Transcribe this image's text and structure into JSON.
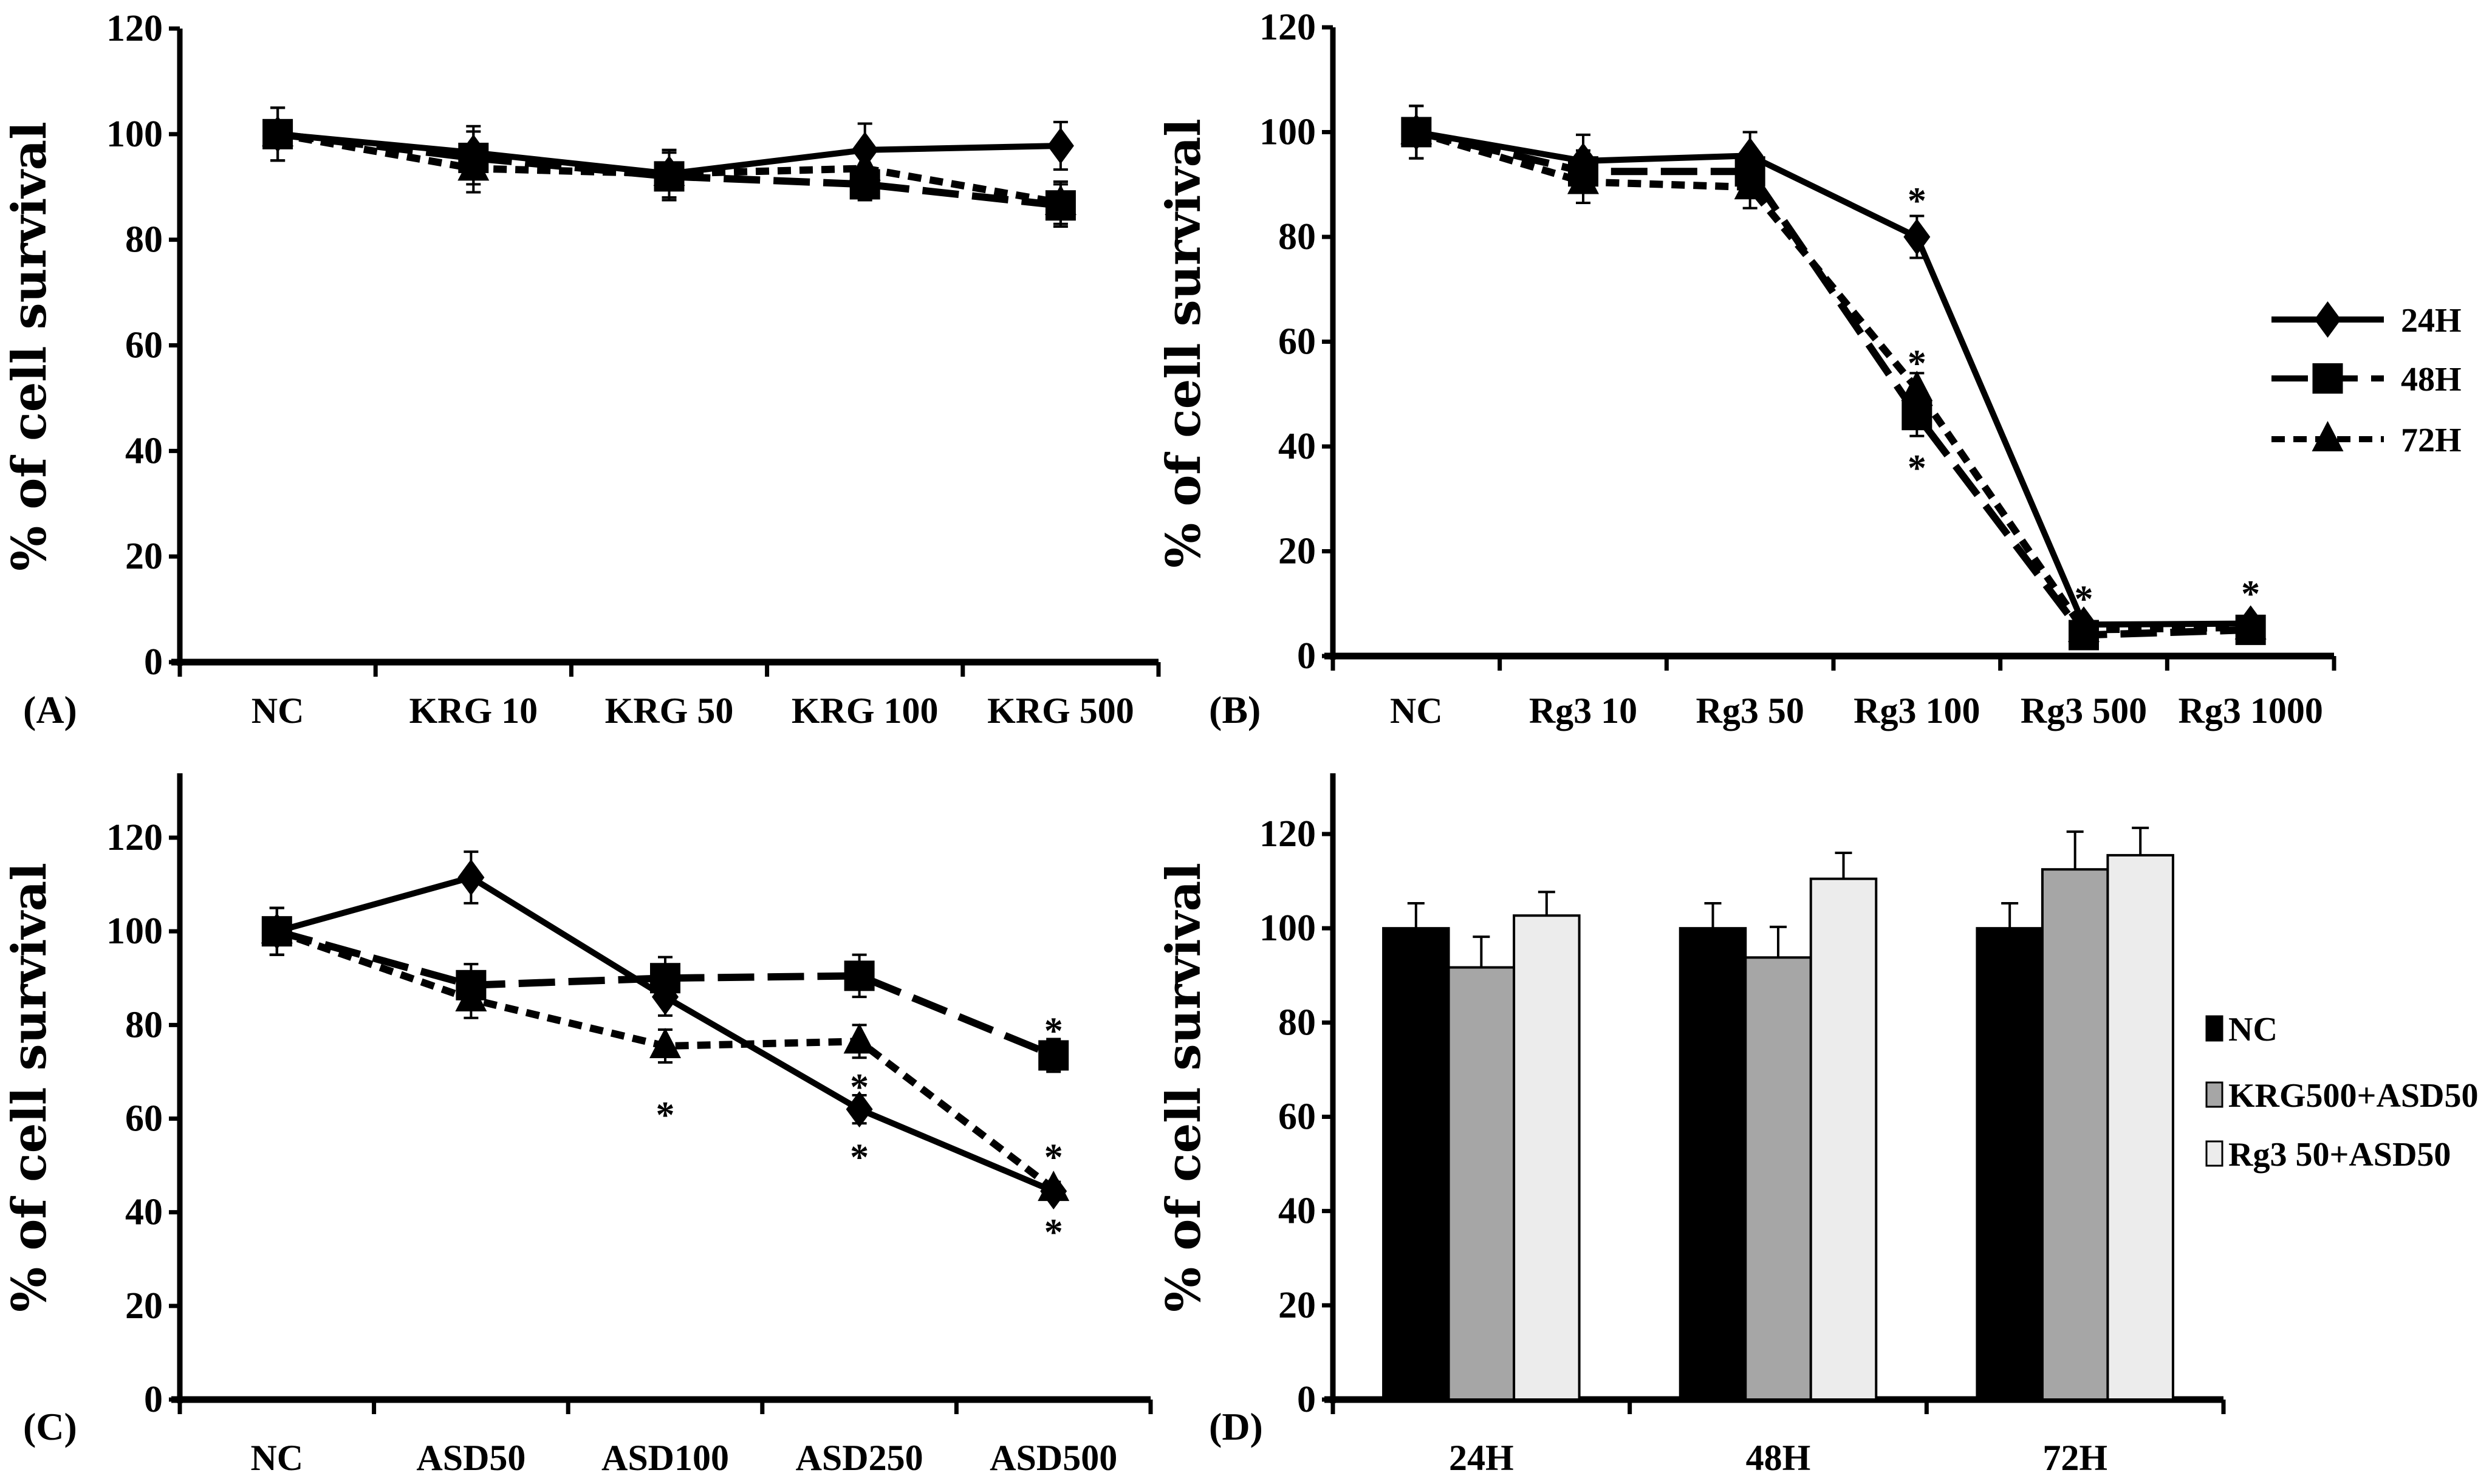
{
  "colors": {
    "ink": "#000000",
    "nc_bar": "#000000",
    "krg_bar": "#a6a6a6",
    "rg3_bar": "#ececec"
  },
  "chart_data": [
    {
      "panel_label": "(A)",
      "type": "line",
      "ylabel": "% of cell survival",
      "ylim": [
        0,
        120
      ],
      "yticks": [
        "0",
        "20",
        "40",
        "60",
        "80",
        "100",
        "120"
      ],
      "categories": [
        "NC",
        "KRG 10",
        "KRG 50",
        "KRG 100",
        "KRG 500"
      ],
      "series": [
        {
          "name": "24H",
          "marker": "diamond",
          "dash": "solid",
          "values": [
            100,
            96.5,
            92.5,
            97,
            97.8
          ],
          "errors": [
            5,
            5,
            4.5,
            5,
            4.5
          ]
        },
        {
          "name": "48H",
          "marker": "square",
          "dash": "long",
          "values": [
            100,
            95.5,
            92,
            90.5,
            86.5
          ],
          "errors": [
            5,
            5,
            4.5,
            3,
            4
          ]
        },
        {
          "name": "72H",
          "marker": "triangle",
          "dash": "short",
          "values": [
            100,
            93.5,
            92.5,
            93.5,
            87
          ],
          "errors": [
            5,
            4.5,
            4.5,
            3,
            4
          ]
        }
      ],
      "asterisks": []
    },
    {
      "panel_label": "(B)",
      "type": "line",
      "ylabel": "% of cell survival",
      "ylim": [
        0,
        120
      ],
      "yticks": [
        "0",
        "20",
        "40",
        "60",
        "80",
        "100",
        "120"
      ],
      "categories": [
        "NC",
        "Rg3 10",
        "Rg3 50",
        "Rg3 100",
        "Rg3 500",
        "Rg3 1000"
      ],
      "legend": {
        "position": "right",
        "entries": [
          "24H",
          "48H",
          "72H"
        ]
      },
      "series": [
        {
          "name": "24H",
          "marker": "diamond",
          "dash": "solid",
          "values": [
            100,
            94.5,
            95.5,
            80,
            6,
            6.2
          ],
          "errors": [
            5,
            5,
            4.5,
            4,
            1,
            1
          ]
        },
        {
          "name": "48H",
          "marker": "square",
          "dash": "long",
          "values": [
            100,
            92.5,
            92.5,
            46,
            4,
            5
          ],
          "errors": [
            5,
            4,
            4,
            4,
            1,
            1
          ]
        },
        {
          "name": "72H",
          "marker": "triangle",
          "dash": "short",
          "values": [
            100,
            90.5,
            89.5,
            51,
            5,
            5.5
          ],
          "errors": [
            5,
            4,
            4,
            3,
            1,
            1
          ]
        }
      ],
      "asterisks": [
        {
          "cat": 3,
          "y": 88
        },
        {
          "cat": 3,
          "y": 57
        },
        {
          "cat": 3,
          "y": 37
        },
        {
          "cat": 4,
          "y": 12
        },
        {
          "cat": 5,
          "y": 13
        }
      ]
    },
    {
      "panel_label": "(C)",
      "type": "line",
      "ylabel": "% of cell survival",
      "ylim": [
        0,
        134
      ],
      "yticks": [
        "0",
        "20",
        "40",
        "60",
        "80",
        "100",
        "120"
      ],
      "categories": [
        "NC",
        "ASD50",
        "ASD100",
        "ASD250",
        "ASD500"
      ],
      "series": [
        {
          "name": "24H",
          "marker": "diamond",
          "dash": "solid",
          "values": [
            100,
            111.5,
            86,
            62,
            44.5
          ],
          "errors": [
            5,
            5.5,
            4,
            3,
            1.5
          ]
        },
        {
          "name": "48H",
          "marker": "square",
          "dash": "long",
          "values": [
            100,
            88.5,
            90,
            90.5,
            73.5
          ],
          "errors": [
            5,
            4.5,
            4.5,
            4.5,
            3.5
          ]
        },
        {
          "name": "72H",
          "marker": "triangle",
          "dash": "short",
          "values": [
            100,
            85.5,
            75.5,
            76.5,
            45
          ],
          "errors": [
            5,
            4,
            3.5,
            3.5,
            1.5
          ]
        }
      ],
      "asterisks": [
        {
          "cat": 2,
          "y": 62
        },
        {
          "cat": 3,
          "y": 68
        },
        {
          "cat": 3,
          "y": 53
        },
        {
          "cat": 4,
          "y": 80
        },
        {
          "cat": 4,
          "y": 53
        },
        {
          "cat": 4,
          "y": 37
        }
      ]
    },
    {
      "panel_label": "(D)",
      "type": "bar",
      "ylabel": "% of cell survival",
      "ylim": [
        0,
        134
      ],
      "yticks": [
        "0",
        "20",
        "40",
        "60",
        "80",
        "100",
        "120"
      ],
      "categories": [
        "24H",
        "48H",
        "72H"
      ],
      "legend": {
        "position": "right",
        "entries": [
          "NC",
          "KRG500+ASD50",
          "Rg3 50+ASD50"
        ]
      },
      "series": [
        {
          "name": "NC",
          "values": [
            100,
            100,
            100
          ],
          "errors": [
            5.3,
            5.3,
            5.3
          ]
        },
        {
          "name": "KRG500+ASD50",
          "values": [
            91.7,
            93.8,
            112.5
          ],
          "errors": [
            6.5,
            6.5,
            8
          ]
        },
        {
          "name": "Rg3 50+ASD50",
          "values": [
            102.7,
            110.5,
            115.5
          ],
          "errors": [
            5,
            5.5,
            5.8
          ]
        }
      ]
    }
  ]
}
